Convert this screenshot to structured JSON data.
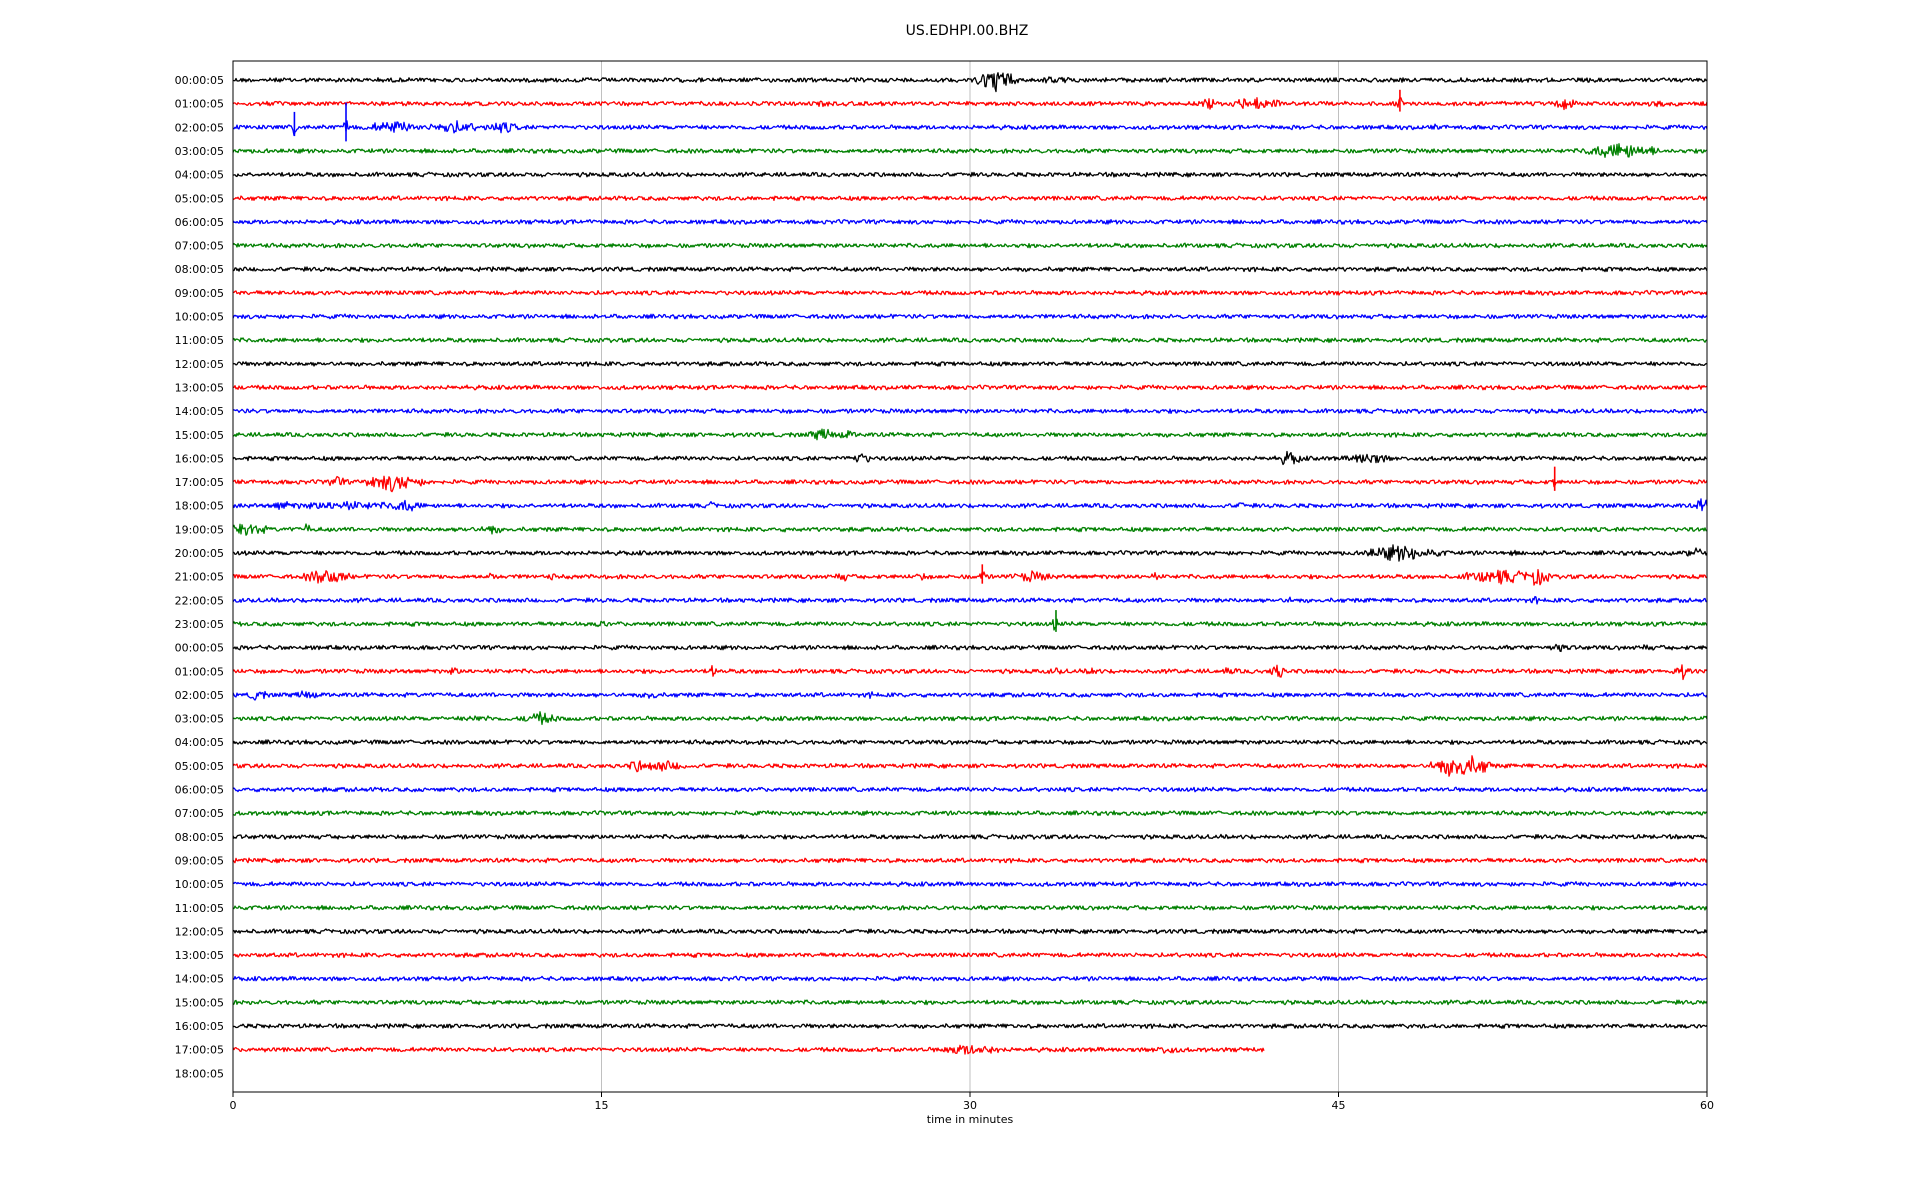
{
  "chart_data": {
    "type": "line",
    "title": "US.EDHPI.00.BHZ",
    "xlabel": "time in minutes",
    "ylabel": "",
    "xlim": [
      0,
      60
    ],
    "x_ticks": [
      0,
      15,
      30,
      45,
      60
    ],
    "grid": "vertical",
    "colors": [
      "#000000",
      "#ff0000",
      "#0000ff",
      "#008000"
    ],
    "rows": [
      {
        "label": "00:00:05",
        "color": "#000000",
        "end": 60
      },
      {
        "label": "01:00:05",
        "color": "#ff0000",
        "end": 60
      },
      {
        "label": "02:00:05",
        "color": "#0000ff",
        "end": 60
      },
      {
        "label": "03:00:05",
        "color": "#008000",
        "end": 60
      },
      {
        "label": "04:00:05",
        "color": "#000000",
        "end": 60
      },
      {
        "label": "05:00:05",
        "color": "#ff0000",
        "end": 60
      },
      {
        "label": "06:00:05",
        "color": "#0000ff",
        "end": 60
      },
      {
        "label": "07:00:05",
        "color": "#008000",
        "end": 60
      },
      {
        "label": "08:00:05",
        "color": "#000000",
        "end": 60
      },
      {
        "label": "09:00:05",
        "color": "#ff0000",
        "end": 60
      },
      {
        "label": "10:00:05",
        "color": "#0000ff",
        "end": 60
      },
      {
        "label": "11:00:05",
        "color": "#008000",
        "end": 60
      },
      {
        "label": "12:00:05",
        "color": "#000000",
        "end": 60
      },
      {
        "label": "13:00:05",
        "color": "#ff0000",
        "end": 60
      },
      {
        "label": "14:00:05",
        "color": "#0000ff",
        "end": 60
      },
      {
        "label": "15:00:05",
        "color": "#008000",
        "end": 60
      },
      {
        "label": "16:00:05",
        "color": "#000000",
        "end": 60
      },
      {
        "label": "17:00:05",
        "color": "#ff0000",
        "end": 60
      },
      {
        "label": "18:00:05",
        "color": "#0000ff",
        "end": 60
      },
      {
        "label": "19:00:05",
        "color": "#008000",
        "end": 60
      },
      {
        "label": "20:00:05",
        "color": "#000000",
        "end": 60
      },
      {
        "label": "21:00:05",
        "color": "#ff0000",
        "end": 60
      },
      {
        "label": "22:00:05",
        "color": "#0000ff",
        "end": 60
      },
      {
        "label": "23:00:05",
        "color": "#008000",
        "end": 60
      },
      {
        "label": "00:00:05",
        "color": "#000000",
        "end": 60
      },
      {
        "label": "01:00:05",
        "color": "#ff0000",
        "end": 60
      },
      {
        "label": "02:00:05",
        "color": "#0000ff",
        "end": 60
      },
      {
        "label": "03:00:05",
        "color": "#008000",
        "end": 60
      },
      {
        "label": "04:00:05",
        "color": "#000000",
        "end": 60
      },
      {
        "label": "05:00:05",
        "color": "#ff0000",
        "end": 60
      },
      {
        "label": "06:00:05",
        "color": "#0000ff",
        "end": 60
      },
      {
        "label": "07:00:05",
        "color": "#008000",
        "end": 60
      },
      {
        "label": "08:00:05",
        "color": "#000000",
        "end": 60
      },
      {
        "label": "09:00:05",
        "color": "#ff0000",
        "end": 60
      },
      {
        "label": "10:00:05",
        "color": "#0000ff",
        "end": 60
      },
      {
        "label": "11:00:05",
        "color": "#008000",
        "end": 60
      },
      {
        "label": "12:00:05",
        "color": "#000000",
        "end": 60
      },
      {
        "label": "13:00:05",
        "color": "#ff0000",
        "end": 60
      },
      {
        "label": "14:00:05",
        "color": "#0000ff",
        "end": 60
      },
      {
        "label": "15:00:05",
        "color": "#008000",
        "end": 60
      },
      {
        "label": "16:00:05",
        "color": "#000000",
        "end": 60
      },
      {
        "label": "17:00:05",
        "color": "#ff0000",
        "end": 42
      },
      {
        "label": "18:00:05",
        "color": "#0000ff",
        "end": 0
      }
    ],
    "events": [
      {
        "row": 0,
        "t": 14.5,
        "amp": 0.35,
        "dur": 0.4
      },
      {
        "row": 0,
        "t": 31.0,
        "amp": 1.2,
        "dur": 1.2
      },
      {
        "row": 0,
        "t": 33.5,
        "amp": 0.5,
        "dur": 0.8
      },
      {
        "row": 1,
        "t": 24.0,
        "amp": 0.45,
        "dur": 0.8
      },
      {
        "row": 1,
        "t": 39.8,
        "amp": 0.6,
        "dur": 0.6
      },
      {
        "row": 1,
        "t": 41.5,
        "amp": 0.8,
        "dur": 1.4
      },
      {
        "row": 1,
        "t": 47.5,
        "amp": 0.9,
        "dur": 0.1
      },
      {
        "row": 1,
        "t": 54.2,
        "amp": 0.7,
        "dur": 0.7
      },
      {
        "row": 1,
        "t": 58.0,
        "amp": 0.4,
        "dur": 0.8
      },
      {
        "row": 2,
        "t": 2.5,
        "amp": 1.0,
        "dur": 0.1
      },
      {
        "row": 2,
        "t": 4.6,
        "amp": 1.6,
        "dur": 0.15
      },
      {
        "row": 2,
        "t": 6.5,
        "amp": 0.7,
        "dur": 1.5
      },
      {
        "row": 2,
        "t": 9.0,
        "amp": 0.7,
        "dur": 1.5
      },
      {
        "row": 2,
        "t": 11.0,
        "amp": 0.6,
        "dur": 1.2
      },
      {
        "row": 2,
        "t": 49.0,
        "amp": 0.35,
        "dur": 0.6
      },
      {
        "row": 3,
        "t": 56.5,
        "amp": 0.9,
        "dur": 2.0
      },
      {
        "row": 4,
        "t": 36.0,
        "amp": 0.3,
        "dur": 0.8
      },
      {
        "row": 15,
        "t": 24.0,
        "amp": 0.7,
        "dur": 0.8
      },
      {
        "row": 15,
        "t": 25.0,
        "amp": 0.5,
        "dur": 0.6
      },
      {
        "row": 16,
        "t": 25.5,
        "amp": 0.6,
        "dur": 0.8
      },
      {
        "row": 16,
        "t": 43.0,
        "amp": 0.8,
        "dur": 0.7
      },
      {
        "row": 16,
        "t": 46.2,
        "amp": 0.7,
        "dur": 1.2
      },
      {
        "row": 17,
        "t": 4.2,
        "amp": 0.6,
        "dur": 0.7
      },
      {
        "row": 17,
        "t": 6.5,
        "amp": 1.0,
        "dur": 1.6
      },
      {
        "row": 17,
        "t": 53.8,
        "amp": 1.0,
        "dur": 0.1
      },
      {
        "row": 18,
        "t": 2.0,
        "amp": 0.6,
        "dur": 0.6
      },
      {
        "row": 18,
        "t": 4.5,
        "amp": 0.5,
        "dur": 4.0
      },
      {
        "row": 18,
        "t": 7.0,
        "amp": 0.7,
        "dur": 1.0
      },
      {
        "row": 18,
        "t": 19.5,
        "amp": 0.4,
        "dur": 0.5
      },
      {
        "row": 18,
        "t": 41.0,
        "amp": 0.5,
        "dur": 0.3
      },
      {
        "row": 18,
        "t": 59.8,
        "amp": 0.8,
        "dur": 0.4
      },
      {
        "row": 19,
        "t": 0.5,
        "amp": 0.8,
        "dur": 1.2
      },
      {
        "row": 19,
        "t": 3.0,
        "amp": 0.7,
        "dur": 0.2
      },
      {
        "row": 19,
        "t": 9.5,
        "amp": 0.35,
        "dur": 0.8
      },
      {
        "row": 19,
        "t": 10.5,
        "amp": 0.6,
        "dur": 0.6
      },
      {
        "row": 19,
        "t": 22.5,
        "amp": 0.3,
        "dur": 0.3
      },
      {
        "row": 20,
        "t": 47.5,
        "amp": 0.9,
        "dur": 2.0
      },
      {
        "row": 20,
        "t": 49.0,
        "amp": 0.4,
        "dur": 1.0
      },
      {
        "row": 20,
        "t": 52.0,
        "amp": 0.3,
        "dur": 1.0
      },
      {
        "row": 20,
        "t": 59.5,
        "amp": 0.6,
        "dur": 0.5
      },
      {
        "row": 21,
        "t": 3.8,
        "amp": 0.9,
        "dur": 1.2
      },
      {
        "row": 21,
        "t": 10.5,
        "amp": 0.5,
        "dur": 0.2
      },
      {
        "row": 21,
        "t": 13.0,
        "amp": 0.6,
        "dur": 0.1
      },
      {
        "row": 21,
        "t": 24.8,
        "amp": 0.5,
        "dur": 0.6
      },
      {
        "row": 21,
        "t": 28.0,
        "amp": 0.5,
        "dur": 0.4
      },
      {
        "row": 21,
        "t": 30.5,
        "amp": 0.8,
        "dur": 0.2
      },
      {
        "row": 21,
        "t": 32.5,
        "amp": 0.6,
        "dur": 1.2
      },
      {
        "row": 21,
        "t": 37.5,
        "amp": 0.5,
        "dur": 0.3
      },
      {
        "row": 21,
        "t": 51.5,
        "amp": 0.8,
        "dur": 2.0
      },
      {
        "row": 21,
        "t": 53.0,
        "amp": 1.0,
        "dur": 0.8
      },
      {
        "row": 22,
        "t": 43.0,
        "amp": 0.4,
        "dur": 0.5
      },
      {
        "row": 22,
        "t": 53.0,
        "amp": 0.5,
        "dur": 0.2
      },
      {
        "row": 23,
        "t": 15.0,
        "amp": 0.6,
        "dur": 0.3
      },
      {
        "row": 23,
        "t": 33.5,
        "amp": 0.9,
        "dur": 0.2
      },
      {
        "row": 23,
        "t": 55.5,
        "amp": 0.3,
        "dur": 0.3
      },
      {
        "row": 24,
        "t": 54.0,
        "amp": 0.5,
        "dur": 0.8
      },
      {
        "row": 24,
        "t": 57.5,
        "amp": 0.4,
        "dur": 0.6
      },
      {
        "row": 25,
        "t": 9.0,
        "amp": 0.5,
        "dur": 0.4
      },
      {
        "row": 25,
        "t": 19.5,
        "amp": 0.7,
        "dur": 0.3
      },
      {
        "row": 25,
        "t": 33.5,
        "amp": 0.4,
        "dur": 0.6
      },
      {
        "row": 25,
        "t": 35.0,
        "amp": 0.5,
        "dur": 0.5
      },
      {
        "row": 25,
        "t": 40.5,
        "amp": 0.4,
        "dur": 0.8
      },
      {
        "row": 25,
        "t": 42.5,
        "amp": 1.0,
        "dur": 0.4
      },
      {
        "row": 25,
        "t": 47.0,
        "amp": 0.3,
        "dur": 0.2
      },
      {
        "row": 25,
        "t": 59.0,
        "amp": 0.8,
        "dur": 0.5
      },
      {
        "row": 26,
        "t": 1.0,
        "amp": 0.7,
        "dur": 0.5
      },
      {
        "row": 26,
        "t": 3.0,
        "amp": 0.5,
        "dur": 0.8
      },
      {
        "row": 26,
        "t": 11.5,
        "amp": 0.6,
        "dur": 0.2
      },
      {
        "row": 26,
        "t": 17.0,
        "amp": 0.6,
        "dur": 0.5
      },
      {
        "row": 26,
        "t": 26.0,
        "amp": 0.4,
        "dur": 0.3
      },
      {
        "row": 27,
        "t": 10.0,
        "amp": 0.4,
        "dur": 1.2
      },
      {
        "row": 27,
        "t": 12.5,
        "amp": 0.7,
        "dur": 1.0
      },
      {
        "row": 28,
        "t": 32.3,
        "amp": 0.3,
        "dur": 0.2
      },
      {
        "row": 29,
        "t": 16.5,
        "amp": 0.7,
        "dur": 0.6
      },
      {
        "row": 29,
        "t": 17.5,
        "amp": 0.6,
        "dur": 1.5
      },
      {
        "row": 29,
        "t": 50.0,
        "amp": 1.3,
        "dur": 1.6
      },
      {
        "row": 30,
        "t": 4.5,
        "amp": 0.3,
        "dur": 0.2
      },
      {
        "row": 31,
        "t": 53.5,
        "amp": 0.4,
        "dur": 0.4
      },
      {
        "row": 41,
        "t": 30.0,
        "amp": 0.6,
        "dur": 2.0
      },
      {
        "row": 41,
        "t": 38.0,
        "amp": 0.5,
        "dur": 1.0
      }
    ]
  }
}
